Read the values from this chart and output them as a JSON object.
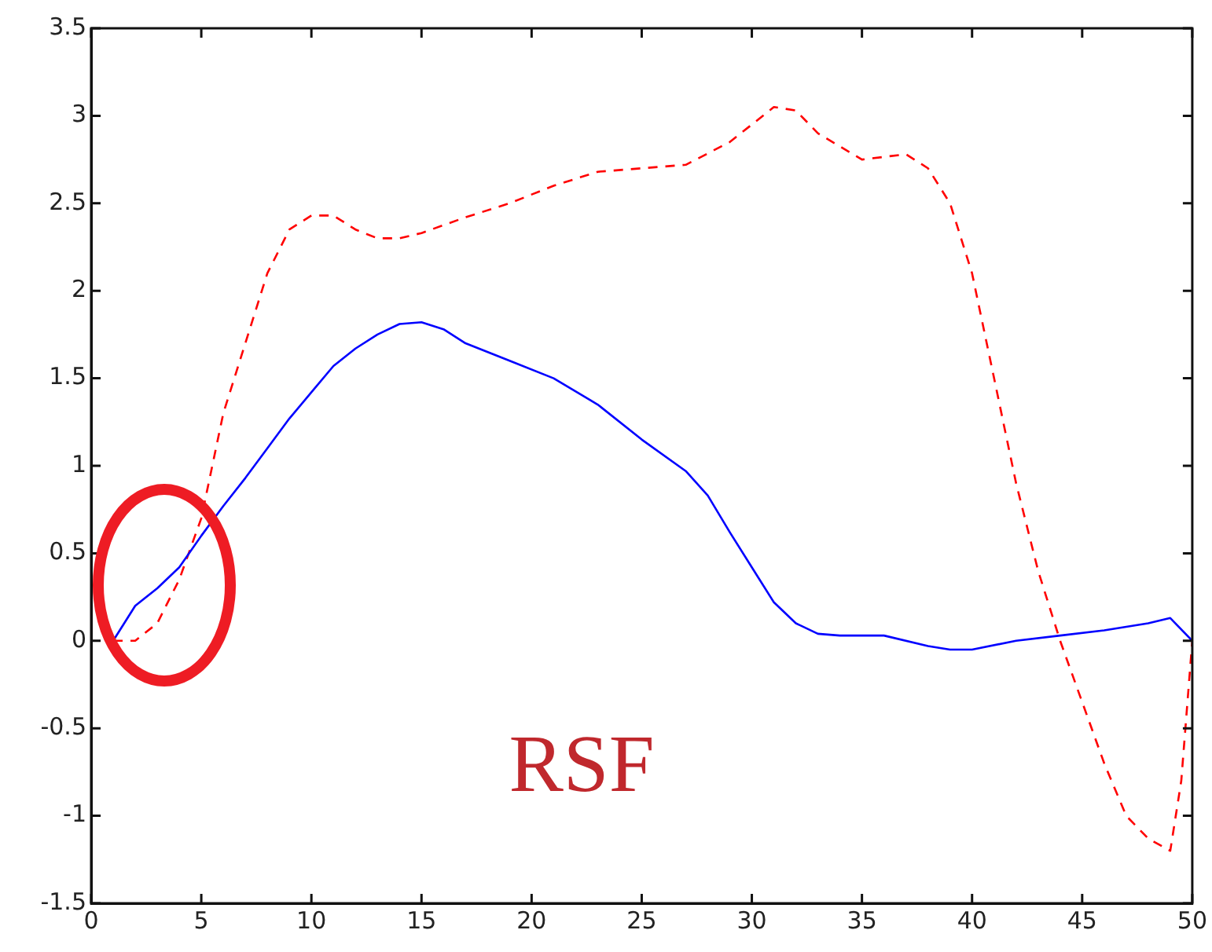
{
  "chart_data": {
    "type": "line",
    "xlim": [
      0,
      50
    ],
    "xticks": [
      0,
      5,
      10,
      15,
      20,
      25,
      30,
      35,
      40,
      45,
      50
    ],
    "ylim": [
      -1.5,
      3.5
    ],
    "yticks": [
      -1.5,
      -1,
      -0.5,
      0,
      0.5,
      1,
      1.5,
      2,
      2.5,
      3,
      3.5
    ],
    "grid": false,
    "legend": false,
    "marker": "none",
    "annotations": [
      "RSF"
    ],
    "series": [
      {
        "color": "#0000ff",
        "line_style": "solid",
        "x": [
          1,
          2,
          3,
          4,
          5,
          6,
          7,
          8,
          9,
          10,
          11,
          12,
          13,
          14,
          15,
          16,
          17,
          19,
          21,
          23,
          25,
          27,
          28,
          29,
          30,
          31,
          32,
          33,
          34,
          36,
          38,
          39,
          40,
          42,
          44,
          46,
          48,
          49,
          50
        ],
        "values": [
          0,
          0.2,
          0.3,
          0.42,
          0.6,
          0.77,
          0.93,
          1.1,
          1.27,
          1.42,
          1.57,
          1.67,
          1.75,
          1.81,
          1.82,
          1.78,
          1.7,
          1.6,
          1.5,
          1.35,
          1.15,
          0.97,
          0.83,
          0.62,
          0.42,
          0.22,
          0.1,
          0.04,
          0.03,
          0.03,
          -0.03,
          -0.05,
          -0.05,
          0,
          0.03,
          0.06,
          0.1,
          0.13,
          0
        ]
      },
      {
        "color": "#ff0000",
        "line_style": "dashed",
        "x": [
          1,
          2,
          3,
          4,
          5,
          6,
          7,
          8,
          9,
          10,
          11,
          12,
          13,
          14,
          15,
          17,
          19,
          21,
          23,
          25,
          27,
          29,
          31,
          32,
          33,
          35,
          37,
          38,
          39,
          40,
          41,
          42,
          43,
          44,
          45,
          46,
          47,
          48,
          49,
          49.5,
          50
        ],
        "values": [
          0,
          0,
          0.1,
          0.35,
          0.7,
          1.3,
          1.7,
          2.1,
          2.35,
          2.43,
          2.43,
          2.35,
          2.3,
          2.3,
          2.33,
          2.42,
          2.5,
          2.6,
          2.68,
          2.7,
          2.72,
          2.85,
          3.05,
          3.03,
          2.9,
          2.75,
          2.78,
          2.7,
          2.5,
          2.1,
          1.5,
          0.9,
          0.4,
          0,
          -0.35,
          -0.7,
          -1,
          -1.13,
          -1.2,
          -0.8,
          0
        ]
      }
    ]
  }
}
